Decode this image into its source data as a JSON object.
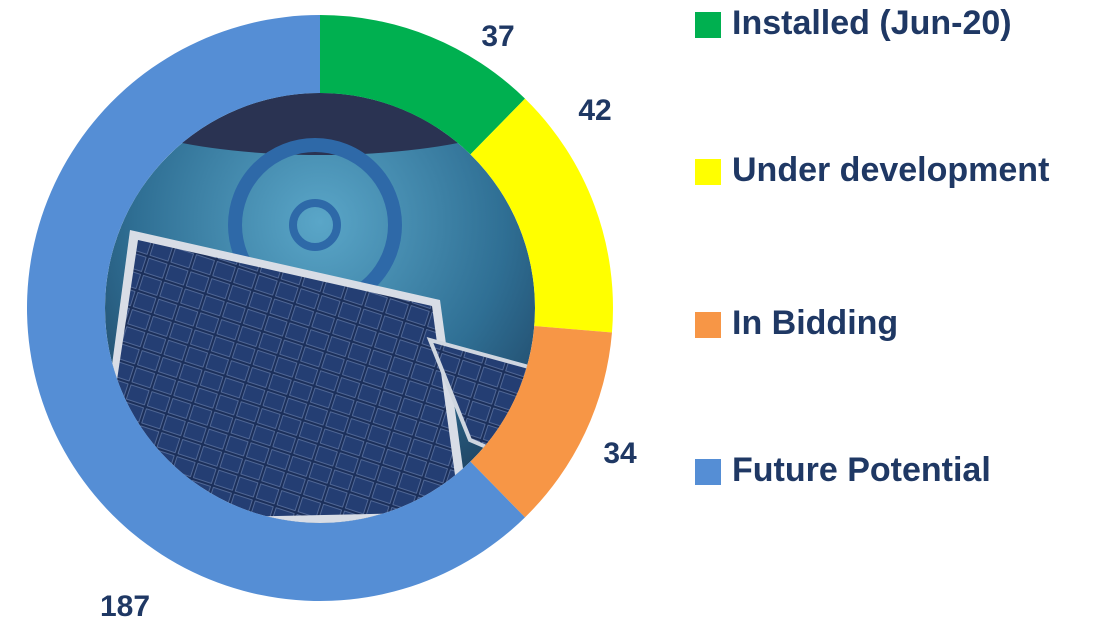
{
  "chart_data": {
    "type": "donut",
    "categories": [
      "Installed (Jun-20)",
      "Under development",
      "In Bidding",
      "Future Potential"
    ],
    "values": [
      37,
      42,
      34,
      187
    ],
    "colors": [
      "#00b050",
      "#ffff00",
      "#f79646",
      "#558ed5"
    ],
    "legend": "right"
  }
}
